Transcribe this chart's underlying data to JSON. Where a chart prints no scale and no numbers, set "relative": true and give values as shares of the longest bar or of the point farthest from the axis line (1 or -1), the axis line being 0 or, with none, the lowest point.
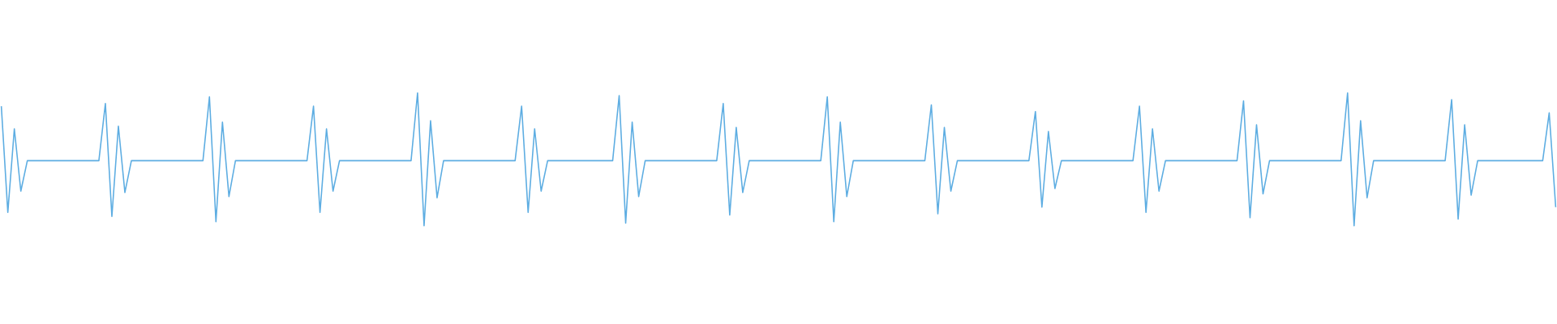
{
  "chart_data": {
    "type": "line",
    "relative": true,
    "color": "#5dade2",
    "categories": [
      null,
      null,
      null,
      null,
      null,
      null,
      null,
      null,
      null,
      null,
      null,
      null,
      null,
      null,
      null,
      null,
      null,
      null,
      null,
      null,
      null,
      null,
      null,
      null,
      null,
      null,
      null,
      null,
      null,
      null,
      null,
      null,
      null,
      null,
      null,
      null,
      null,
      null,
      null,
      null,
      null,
      null,
      null,
      null,
      null,
      null,
      null,
      null,
      null,
      null,
      null,
      null,
      null,
      null,
      null,
      null,
      null,
      null,
      null,
      null,
      null,
      null,
      null,
      null,
      null,
      null,
      null,
      null,
      null,
      null,
      null,
      null,
      null,
      null,
      null,
      null,
      null,
      null,
      null,
      null,
      null,
      null,
      null,
      null,
      null,
      null,
      null,
      null,
      null,
      null,
      null,
      null,
      null,
      null,
      null,
      null,
      null,
      null,
      null,
      null,
      null,
      null,
      null,
      null,
      null,
      null,
      null,
      null,
      null,
      null,
      null,
      null,
      null,
      null,
      null,
      null,
      null,
      null,
      null,
      null,
      null,
      null,
      null,
      null,
      null,
      null,
      null,
      null,
      null,
      null,
      null,
      null,
      null,
      null,
      null,
      null,
      null,
      null,
      null,
      null,
      null,
      null,
      null,
      null,
      null,
      null,
      null,
      null,
      null,
      null,
      null,
      null,
      null,
      null,
      null,
      null,
      null,
      null,
      null,
      null,
      null,
      null,
      null,
      null,
      null,
      null,
      null,
      null,
      null,
      null,
      null,
      null,
      null,
      null,
      null,
      null,
      null,
      null,
      null,
      null,
      null,
      null,
      null,
      null,
      null,
      null,
      null,
      null,
      null,
      null,
      null,
      null,
      null,
      null,
      null,
      null,
      null,
      null,
      null,
      null,
      null,
      null,
      null,
      null,
      null,
      null,
      null,
      null,
      null,
      null,
      null,
      null,
      null,
      null,
      null,
      null,
      null,
      null,
      null,
      null,
      null,
      null,
      null,
      null,
      null,
      null,
      null,
      null,
      null,
      null,
      null,
      null,
      null,
      null,
      null,
      null,
      null,
      null,
      null,
      null
    ],
    "values": [
      0.9,
      0.1,
      0.73,
      0.26,
      0.49,
      0.49,
      0.49,
      0.49,
      0.49,
      0.49,
      0.49,
      0.49,
      0.49,
      0.49,
      0.49,
      0.49,
      0.92,
      0.07,
      0.75,
      0.25,
      0.49,
      0.49,
      0.49,
      0.49,
      0.49,
      0.49,
      0.49,
      0.49,
      0.49,
      0.49,
      0.49,
      0.49,
      0.97,
      0.03,
      0.78,
      0.22,
      0.49,
      0.49,
      0.49,
      0.49,
      0.49,
      0.49,
      0.49,
      0.49,
      0.49,
      0.49,
      0.49,
      0.49,
      0.9,
      0.1,
      0.73,
      0.26,
      0.49,
      0.49,
      0.49,
      0.49,
      0.49,
      0.49,
      0.49,
      0.49,
      0.49,
      0.49,
      0.49,
      0.49,
      1,
      0,
      0.79,
      0.21,
      0.49,
      0.49,
      0.49,
      0.49,
      0.49,
      0.49,
      0.49,
      0.49,
      0.49,
      0.49,
      0.49,
      0.49,
      0.9,
      0.1,
      0.73,
      0.26,
      0.49,
      0.49,
      0.49,
      0.49,
      0.49,
      0.49,
      0.49,
      0.49,
      0.49,
      0.49,
      0.49,
      0.98,
      0.02,
      0.78,
      0.22,
      0.49,
      0.49,
      0.49,
      0.49,
      0.49,
      0.49,
      0.49,
      0.49,
      0.49,
      0.49,
      0.49,
      0.49,
      0.92,
      0.08,
      0.74,
      0.25,
      0.49,
      0.49,
      0.49,
      0.49,
      0.49,
      0.49,
      0.49,
      0.49,
      0.49,
      0.49,
      0.49,
      0.49,
      0.97,
      0.03,
      0.78,
      0.22,
      0.49,
      0.49,
      0.49,
      0.49,
      0.49,
      0.49,
      0.49,
      0.49,
      0.49,
      0.49,
      0.49,
      0.49,
      0.91,
      0.09,
      0.74,
      0.26,
      0.49,
      0.49,
      0.49,
      0.49,
      0.49,
      0.49,
      0.49,
      0.49,
      0.49,
      0.49,
      0.49,
      0.49,
      0.86,
      0.14,
      0.71,
      0.28,
      0.49,
      0.49,
      0.49,
      0.49,
      0.49,
      0.49,
      0.49,
      0.49,
      0.49,
      0.49,
      0.49,
      0.49,
      0.9,
      0.1,
      0.73,
      0.26,
      0.49,
      0.49,
      0.49,
      0.49,
      0.49,
      0.49,
      0.49,
      0.49,
      0.49,
      0.49,
      0.49,
      0.49,
      0.94,
      0.06,
      0.76,
      0.24,
      0.49,
      0.49,
      0.49,
      0.49,
      0.49,
      0.49,
      0.49,
      0.49,
      0.49,
      0.49,
      0.49,
      0.49,
      1,
      0,
      0.79,
      0.21,
      0.49,
      0.49,
      0.49,
      0.49,
      0.49,
      0.49,
      0.49,
      0.49,
      0.49,
      0.49,
      0.49,
      0.49,
      0.95,
      0.05,
      0.76,
      0.23,
      0.49,
      0.49,
      0.49,
      0.49,
      0.49,
      0.49,
      0.49,
      0.49,
      0.49,
      0.49,
      0.49,
      0.85,
      0.14
    ]
  }
}
